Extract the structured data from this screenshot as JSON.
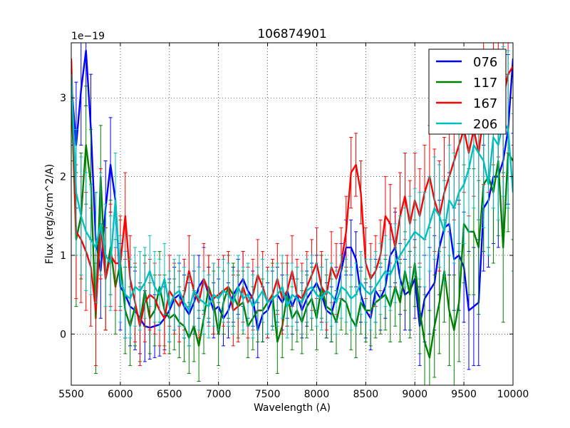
{
  "chart_data": {
    "type": "line",
    "title": "106874901",
    "xlabel": "Wavelength (A)",
    "ylabel": "Flux (erg/s/cm^2/A)",
    "offset_label": "1e−19",
    "xlim": [
      5500,
      10000
    ],
    "ylim": [
      -0.65,
      3.7
    ],
    "x_ticks": [
      5500,
      6000,
      6500,
      7000,
      7500,
      8000,
      8500,
      9000,
      9500,
      10000
    ],
    "x_tick_labels": [
      "5500",
      "6000",
      "6500",
      "7000",
      "7500",
      "8000",
      "8500",
      "9000",
      "9500",
      "10000"
    ],
    "y_ticks": [
      0,
      1,
      2,
      3
    ],
    "y_tick_labels": [
      "0",
      "1",
      "2",
      "3"
    ],
    "grid": true,
    "legend_position": "top-right",
    "series": [
      {
        "name": "076",
        "color": "#0000ff",
        "x": [
          5500,
          5550,
          5600,
          5650,
          5700,
          5750,
          5800,
          5850,
          5900,
          5950,
          6000,
          6050,
          6100,
          6150,
          6200,
          6250,
          6300,
          6350,
          6400,
          6450,
          6500,
          6550,
          6600,
          6650,
          6700,
          6750,
          6800,
          6850,
          6900,
          6950,
          7000,
          7050,
          7100,
          7150,
          7200,
          7250,
          7300,
          7350,
          7400,
          7450,
          7500,
          7550,
          7600,
          7650,
          7700,
          7750,
          7800,
          7850,
          7900,
          7950,
          8000,
          8050,
          8100,
          8150,
          8200,
          8250,
          8300,
          8350,
          8400,
          8450,
          8500,
          8550,
          8600,
          8650,
          8700,
          8750,
          8800,
          8850,
          8900,
          8950,
          9000,
          9050,
          9100,
          9150,
          9200,
          9250,
          9300,
          9350,
          9400,
          9450,
          9500,
          9550,
          9600,
          9650,
          9700,
          9750,
          9800,
          9850,
          9900,
          9950,
          10000
        ],
        "y": [
          3.2,
          2.4,
          3.1,
          3.6,
          2.6,
          1.2,
          0.8,
          1.6,
          2.15,
          1.7,
          0.6,
          0.5,
          0.35,
          0.3,
          0.2,
          0.1,
          0.08,
          0.1,
          0.12,
          0.2,
          0.3,
          0.45,
          0.5,
          0.35,
          0.25,
          0.4,
          0.6,
          0.7,
          0.5,
          0.3,
          0.35,
          0.2,
          0.3,
          0.5,
          0.6,
          0.7,
          0.55,
          0.45,
          0.05,
          0.25,
          0.3,
          0.45,
          0.5,
          0.4,
          0.55,
          0.35,
          0.5,
          0.3,
          0.45,
          0.55,
          0.65,
          0.5,
          0.3,
          0.25,
          0.5,
          0.8,
          1.1,
          1.1,
          0.95,
          0.5,
          0.3,
          0.2,
          0.55,
          0.45,
          0.6,
          1.0,
          1.1,
          0.7,
          0.5,
          0.55,
          0.7,
          0.1,
          0.45,
          0.55,
          0.65,
          1.1,
          1.35,
          1.4,
          0.95,
          1.0,
          0.85,
          0.3,
          0.35,
          0.4,
          1.6,
          1.7,
          2.0,
          2.0,
          2.2,
          2.6,
          3.5
        ],
        "err": [
          0.8,
          0.8,
          0.7,
          0.7,
          0.7,
          0.6,
          0.6,
          0.6,
          0.6,
          0.6,
          0.55,
          0.55,
          0.5,
          0.5,
          0.45,
          0.45,
          0.4,
          0.4,
          0.4,
          0.4,
          0.4,
          0.4,
          0.4,
          0.4,
          0.4,
          0.4,
          0.4,
          0.4,
          0.35,
          0.35,
          0.35,
          0.35,
          0.35,
          0.35,
          0.35,
          0.35,
          0.35,
          0.35,
          0.35,
          0.35,
          0.35,
          0.35,
          0.35,
          0.35,
          0.35,
          0.35,
          0.35,
          0.35,
          0.35,
          0.35,
          0.35,
          0.35,
          0.35,
          0.35,
          0.35,
          0.35,
          0.35,
          0.35,
          0.35,
          0.35,
          0.35,
          0.4,
          0.4,
          0.4,
          0.4,
          0.4,
          0.45,
          0.45,
          0.45,
          0.5,
          0.5,
          0.5,
          0.55,
          0.55,
          0.6,
          0.6,
          0.6,
          0.65,
          0.65,
          0.7,
          0.7,
          0.75,
          0.75,
          0.8,
          0.8,
          0.85,
          0.85,
          0.9,
          0.9,
          0.95,
          0.95
        ]
      },
      {
        "name": "117",
        "color": "#008000",
        "x": [
          5500,
          5550,
          5600,
          5650,
          5700,
          5750,
          5800,
          5850,
          5900,
          5950,
          6000,
          6050,
          6100,
          6150,
          6200,
          6250,
          6300,
          6350,
          6400,
          6450,
          6500,
          6550,
          6600,
          6650,
          6700,
          6750,
          6800,
          6850,
          6900,
          6950,
          7000,
          7050,
          7100,
          7150,
          7200,
          7250,
          7300,
          7350,
          7400,
          7450,
          7500,
          7550,
          7600,
          7650,
          7700,
          7750,
          7800,
          7850,
          7900,
          7950,
          8000,
          8050,
          8100,
          8150,
          8200,
          8250,
          8300,
          8350,
          8400,
          8450,
          8500,
          8550,
          8600,
          8650,
          8700,
          8750,
          8800,
          8850,
          8900,
          8950,
          9000,
          9050,
          9100,
          9150,
          9200,
          9250,
          9300,
          9350,
          9400,
          9450,
          9500,
          9550,
          9600,
          9650,
          9700,
          9750,
          9800,
          9850,
          9900,
          9950,
          10000
        ],
        "y": [
          3.1,
          1.2,
          1.5,
          2.4,
          1.9,
          0.2,
          2.0,
          0.7,
          1.1,
          0.6,
          0.9,
          0.3,
          0.1,
          0.35,
          0.15,
          0.55,
          0.2,
          0.3,
          0.6,
          0.3,
          0.2,
          0.25,
          0.15,
          0.1,
          -0.05,
          0.1,
          -0.15,
          0.2,
          0.6,
          0.4,
          0.0,
          0.4,
          0.6,
          0.5,
          0.35,
          0.4,
          0.1,
          0.2,
          0.3,
          0.3,
          0.4,
          0.5,
          -0.1,
          0.1,
          0.5,
          0.2,
          0.3,
          0.15,
          0.35,
          0.45,
          0.2,
          0.6,
          0.35,
          0.3,
          0.15,
          0.45,
          0.4,
          0.2,
          0.1,
          0.4,
          0.3,
          0.3,
          0.4,
          0.45,
          0.5,
          0.35,
          0.6,
          0.4,
          0.8,
          0.5,
          0.9,
          0.3,
          -0.1,
          -0.3,
          0.1,
          0.4,
          0.8,
          0.3,
          0.05,
          0.4,
          1.4,
          1.3,
          1.3,
          1.1,
          1.9,
          2.0,
          1.8,
          2.2,
          1.1,
          2.3,
          2.2
        ],
        "err": [
          0.9,
          0.85,
          0.8,
          0.75,
          0.7,
          0.7,
          0.65,
          0.65,
          0.6,
          0.6,
          0.55,
          0.55,
          0.5,
          0.5,
          0.5,
          0.45,
          0.45,
          0.45,
          0.45,
          0.45,
          0.45,
          0.45,
          0.45,
          0.45,
          0.45,
          0.45,
          0.45,
          0.45,
          0.4,
          0.4,
          0.4,
          0.4,
          0.4,
          0.4,
          0.4,
          0.4,
          0.4,
          0.4,
          0.4,
          0.4,
          0.4,
          0.4,
          0.4,
          0.4,
          0.4,
          0.4,
          0.4,
          0.4,
          0.4,
          0.4,
          0.4,
          0.4,
          0.4,
          0.4,
          0.4,
          0.4,
          0.4,
          0.4,
          0.4,
          0.4,
          0.4,
          0.45,
          0.45,
          0.45,
          0.45,
          0.45,
          0.5,
          0.5,
          0.5,
          0.55,
          0.55,
          0.55,
          0.6,
          0.6,
          0.65,
          0.65,
          0.65,
          0.7,
          0.7,
          0.75,
          0.75,
          0.8,
          0.8,
          0.85,
          0.85,
          0.9,
          0.9,
          0.95,
          0.95,
          1.0,
          1.0
        ]
      },
      {
        "name": "167",
        "color": "#ff0000",
        "x": [
          5500,
          5550,
          5600,
          5650,
          5700,
          5750,
          5800,
          5850,
          5900,
          5950,
          6000,
          6050,
          6100,
          6150,
          6200,
          6250,
          6300,
          6350,
          6400,
          6450,
          6500,
          6550,
          6600,
          6650,
          6700,
          6750,
          6800,
          6850,
          6900,
          6950,
          7000,
          7050,
          7100,
          7150,
          7200,
          7250,
          7300,
          7350,
          7400,
          7450,
          7500,
          7550,
          7600,
          7650,
          7700,
          7750,
          7800,
          7850,
          7900,
          7950,
          8000,
          8050,
          8100,
          8150,
          8200,
          8250,
          8300,
          8350,
          8400,
          8450,
          8500,
          8550,
          8600,
          8650,
          8700,
          8750,
          8800,
          8850,
          8900,
          8950,
          9000,
          9050,
          9100,
          9150,
          9200,
          9250,
          9300,
          9350,
          9400,
          9450,
          9500,
          9550,
          9600,
          9650,
          9700,
          9750,
          9800,
          9850,
          9900,
          9950,
          10000
        ],
        "y": [
          3.5,
          1.3,
          1.2,
          1.05,
          0.85,
          0.3,
          1.4,
          0.7,
          1.0,
          0.9,
          0.9,
          1.5,
          0.7,
          0.4,
          0.1,
          0.4,
          0.5,
          0.45,
          0.3,
          0.2,
          0.55,
          0.45,
          0.35,
          0.5,
          0.8,
          0.55,
          0.4,
          0.7,
          0.55,
          0.45,
          0.5,
          0.55,
          0.6,
          0.3,
          0.35,
          0.6,
          0.4,
          0.5,
          0.75,
          0.6,
          0.4,
          0.5,
          0.7,
          0.45,
          0.55,
          0.8,
          0.5,
          0.45,
          0.6,
          0.75,
          0.9,
          0.6,
          0.5,
          0.85,
          0.7,
          0.9,
          1.3,
          2.05,
          2.15,
          1.8,
          0.9,
          0.7,
          0.8,
          1.0,
          1.5,
          1.4,
          1.1,
          1.5,
          1.75,
          1.4,
          1.7,
          1.5,
          1.8,
          2.0,
          1.7,
          1.5,
          1.8,
          2.0,
          2.2,
          2.4,
          2.6,
          2.3,
          2.6,
          2.3,
          2.8,
          2.7,
          3.1,
          3.2,
          3.0,
          3.3,
          3.4
        ],
        "err": [
          0.9,
          0.85,
          0.8,
          0.75,
          0.75,
          0.7,
          0.7,
          0.65,
          0.65,
          0.6,
          0.6,
          0.55,
          0.55,
          0.5,
          0.5,
          0.5,
          0.45,
          0.45,
          0.45,
          0.45,
          0.45,
          0.45,
          0.45,
          0.45,
          0.45,
          0.45,
          0.45,
          0.45,
          0.45,
          0.45,
          0.45,
          0.45,
          0.45,
          0.45,
          0.45,
          0.45,
          0.45,
          0.45,
          0.45,
          0.45,
          0.45,
          0.45,
          0.45,
          0.45,
          0.45,
          0.45,
          0.45,
          0.45,
          0.45,
          0.45,
          0.45,
          0.45,
          0.45,
          0.45,
          0.45,
          0.45,
          0.45,
          0.45,
          0.4,
          0.4,
          0.45,
          0.45,
          0.45,
          0.45,
          0.5,
          0.5,
          0.5,
          0.55,
          0.55,
          0.55,
          0.6,
          0.6,
          0.6,
          0.65,
          0.65,
          0.7,
          0.7,
          0.7,
          0.75,
          0.75,
          0.8,
          0.8,
          0.85,
          0.85,
          0.9,
          0.9,
          0.95,
          0.95,
          1.0,
          1.0,
          1.0
        ]
      },
      {
        "name": "206",
        "color": "#00bfbf",
        "x": [
          5500,
          5550,
          5600,
          5650,
          5700,
          5750,
          5800,
          5850,
          5900,
          5950,
          6000,
          6050,
          6100,
          6150,
          6200,
          6250,
          6300,
          6350,
          6400,
          6450,
          6500,
          6550,
          6600,
          6650,
          6700,
          6750,
          6800,
          6850,
          6900,
          6950,
          7000,
          7050,
          7100,
          7150,
          7200,
          7250,
          7300,
          7350,
          7400,
          7450,
          7500,
          7550,
          7600,
          7650,
          7700,
          7750,
          7800,
          7850,
          7900,
          7950,
          8000,
          8050,
          8100,
          8150,
          8200,
          8250,
          8300,
          8350,
          8400,
          8450,
          8500,
          8550,
          8600,
          8650,
          8700,
          8750,
          8800,
          8850,
          8900,
          8950,
          9000,
          9050,
          9100,
          9150,
          9200,
          9250,
          9300,
          9350,
          9400,
          9450,
          9500,
          9550,
          9600,
          9650,
          9700,
          9750,
          9800,
          9850,
          9900,
          9950,
          10000
        ],
        "y": [
          3.3,
          1.8,
          1.5,
          1.3,
          1.2,
          1.1,
          1.4,
          1.0,
          0.9,
          1.7,
          0.7,
          0.5,
          0.45,
          0.6,
          0.55,
          0.65,
          0.8,
          0.6,
          0.5,
          0.7,
          0.35,
          0.5,
          0.55,
          0.4,
          0.3,
          0.55,
          0.45,
          0.4,
          0.35,
          0.5,
          0.45,
          0.55,
          0.5,
          0.4,
          0.6,
          0.45,
          0.5,
          0.35,
          0.45,
          0.55,
          0.4,
          0.45,
          0.5,
          0.6,
          0.35,
          0.5,
          0.45,
          0.4,
          0.55,
          0.6,
          0.5,
          0.45,
          0.55,
          0.5,
          0.4,
          0.6,
          0.55,
          0.45,
          0.5,
          0.65,
          0.55,
          0.5,
          0.6,
          0.7,
          0.8,
          0.75,
          0.9,
          1.0,
          1.1,
          1.2,
          1.3,
          1.25,
          1.2,
          1.4,
          1.6,
          1.5,
          1.3,
          1.7,
          1.6,
          1.8,
          1.9,
          2.1,
          2.4,
          2.3,
          2.2,
          1.9,
          2.5,
          2.4,
          2.7,
          2.6,
          1.8
        ],
        "err": [
          0.85,
          0.8,
          0.75,
          0.75,
          0.7,
          0.7,
          0.65,
          0.65,
          0.6,
          0.6,
          0.55,
          0.55,
          0.5,
          0.5,
          0.5,
          0.45,
          0.45,
          0.45,
          0.45,
          0.45,
          0.45,
          0.45,
          0.45,
          0.45,
          0.45,
          0.45,
          0.4,
          0.4,
          0.4,
          0.4,
          0.4,
          0.4,
          0.4,
          0.4,
          0.4,
          0.4,
          0.4,
          0.4,
          0.4,
          0.4,
          0.4,
          0.4,
          0.4,
          0.4,
          0.4,
          0.4,
          0.4,
          0.4,
          0.4,
          0.4,
          0.4,
          0.4,
          0.4,
          0.4,
          0.4,
          0.4,
          0.4,
          0.4,
          0.4,
          0.4,
          0.4,
          0.45,
          0.45,
          0.45,
          0.45,
          0.45,
          0.5,
          0.5,
          0.5,
          0.55,
          0.55,
          0.55,
          0.6,
          0.6,
          0.65,
          0.65,
          0.65,
          0.7,
          0.7,
          0.75,
          0.75,
          0.8,
          0.8,
          0.85,
          0.85,
          0.9,
          0.9,
          0.95,
          0.95,
          1.0,
          1.0
        ]
      }
    ]
  }
}
